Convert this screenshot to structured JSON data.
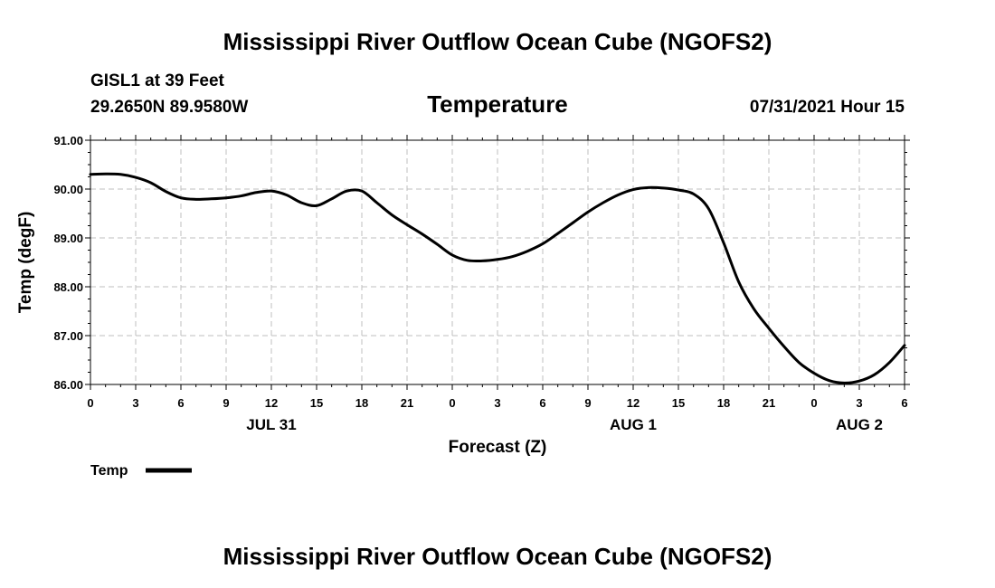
{
  "header": {
    "title_top": "Mississippi River Outflow Ocean Cube (NGOFS2)",
    "station": "GISL1 at 39 Feet",
    "coords": "29.2650N  89.9580W",
    "timestamp": "07/31/2021 Hour 15"
  },
  "footer": {
    "title_bottom": "Mississippi River Outflow Ocean Cube (NGOFS2)"
  },
  "colors": {
    "line": "#000000",
    "grid": "#bfbfbf",
    "axis": "#000000"
  },
  "chart_data": {
    "type": "line",
    "title": "Temperature",
    "xlabel": "Forecast (Z)",
    "ylabel": "Temp (degF)",
    "xlim": [
      0,
      54
    ],
    "ylim": [
      86,
      91
    ],
    "y_ticks": [
      86,
      87,
      88,
      89,
      90,
      91
    ],
    "y_tick_labels": [
      "86.00",
      "87.00",
      "88.00",
      "89.00",
      "90.00",
      "91.00"
    ],
    "x_ticks": [
      0,
      3,
      6,
      9,
      12,
      15,
      18,
      21,
      24,
      27,
      30,
      33,
      36,
      39,
      42,
      45,
      48,
      51,
      54
    ],
    "x_tick_labels": [
      "0",
      "3",
      "6",
      "9",
      "12",
      "15",
      "18",
      "21",
      "0",
      "3",
      "6",
      "9",
      "12",
      "15",
      "18",
      "21",
      "0",
      "3",
      "6"
    ],
    "date_labels": [
      {
        "hour": 12,
        "label": "JUL 31"
      },
      {
        "hour": 36,
        "label": "AUG 1"
      },
      {
        "hour": 51,
        "label": "AUG 2"
      }
    ],
    "grid": true,
    "legend": {
      "placement": "bottom-left",
      "entries": [
        "Temp"
      ]
    },
    "series": [
      {
        "name": "Temp",
        "x": [
          0,
          1,
          2,
          3,
          4,
          5,
          6,
          7,
          8,
          9,
          10,
          11,
          12,
          13,
          14,
          15,
          16,
          17,
          18,
          19,
          20,
          21,
          22,
          23,
          24,
          25,
          26,
          27,
          28,
          29,
          30,
          31,
          32,
          33,
          34,
          35,
          36,
          37,
          38,
          39,
          40,
          41,
          42,
          43,
          44,
          45,
          46,
          47,
          48,
          49,
          50,
          51,
          52,
          53,
          54
        ],
        "values": [
          90.3,
          90.31,
          90.3,
          90.24,
          90.13,
          89.95,
          89.82,
          89.79,
          89.8,
          89.82,
          89.86,
          89.93,
          89.96,
          89.88,
          89.72,
          89.66,
          89.8,
          89.96,
          89.96,
          89.72,
          89.47,
          89.27,
          89.08,
          88.87,
          88.65,
          88.54,
          88.53,
          88.56,
          88.62,
          88.73,
          88.88,
          89.09,
          89.31,
          89.53,
          89.72,
          89.88,
          89.99,
          90.03,
          90.02,
          89.98,
          89.9,
          89.6,
          88.9,
          88.1,
          87.55,
          87.15,
          86.78,
          86.45,
          86.23,
          86.08,
          86.03,
          86.07,
          86.2,
          86.45,
          86.8
        ]
      }
    ]
  }
}
